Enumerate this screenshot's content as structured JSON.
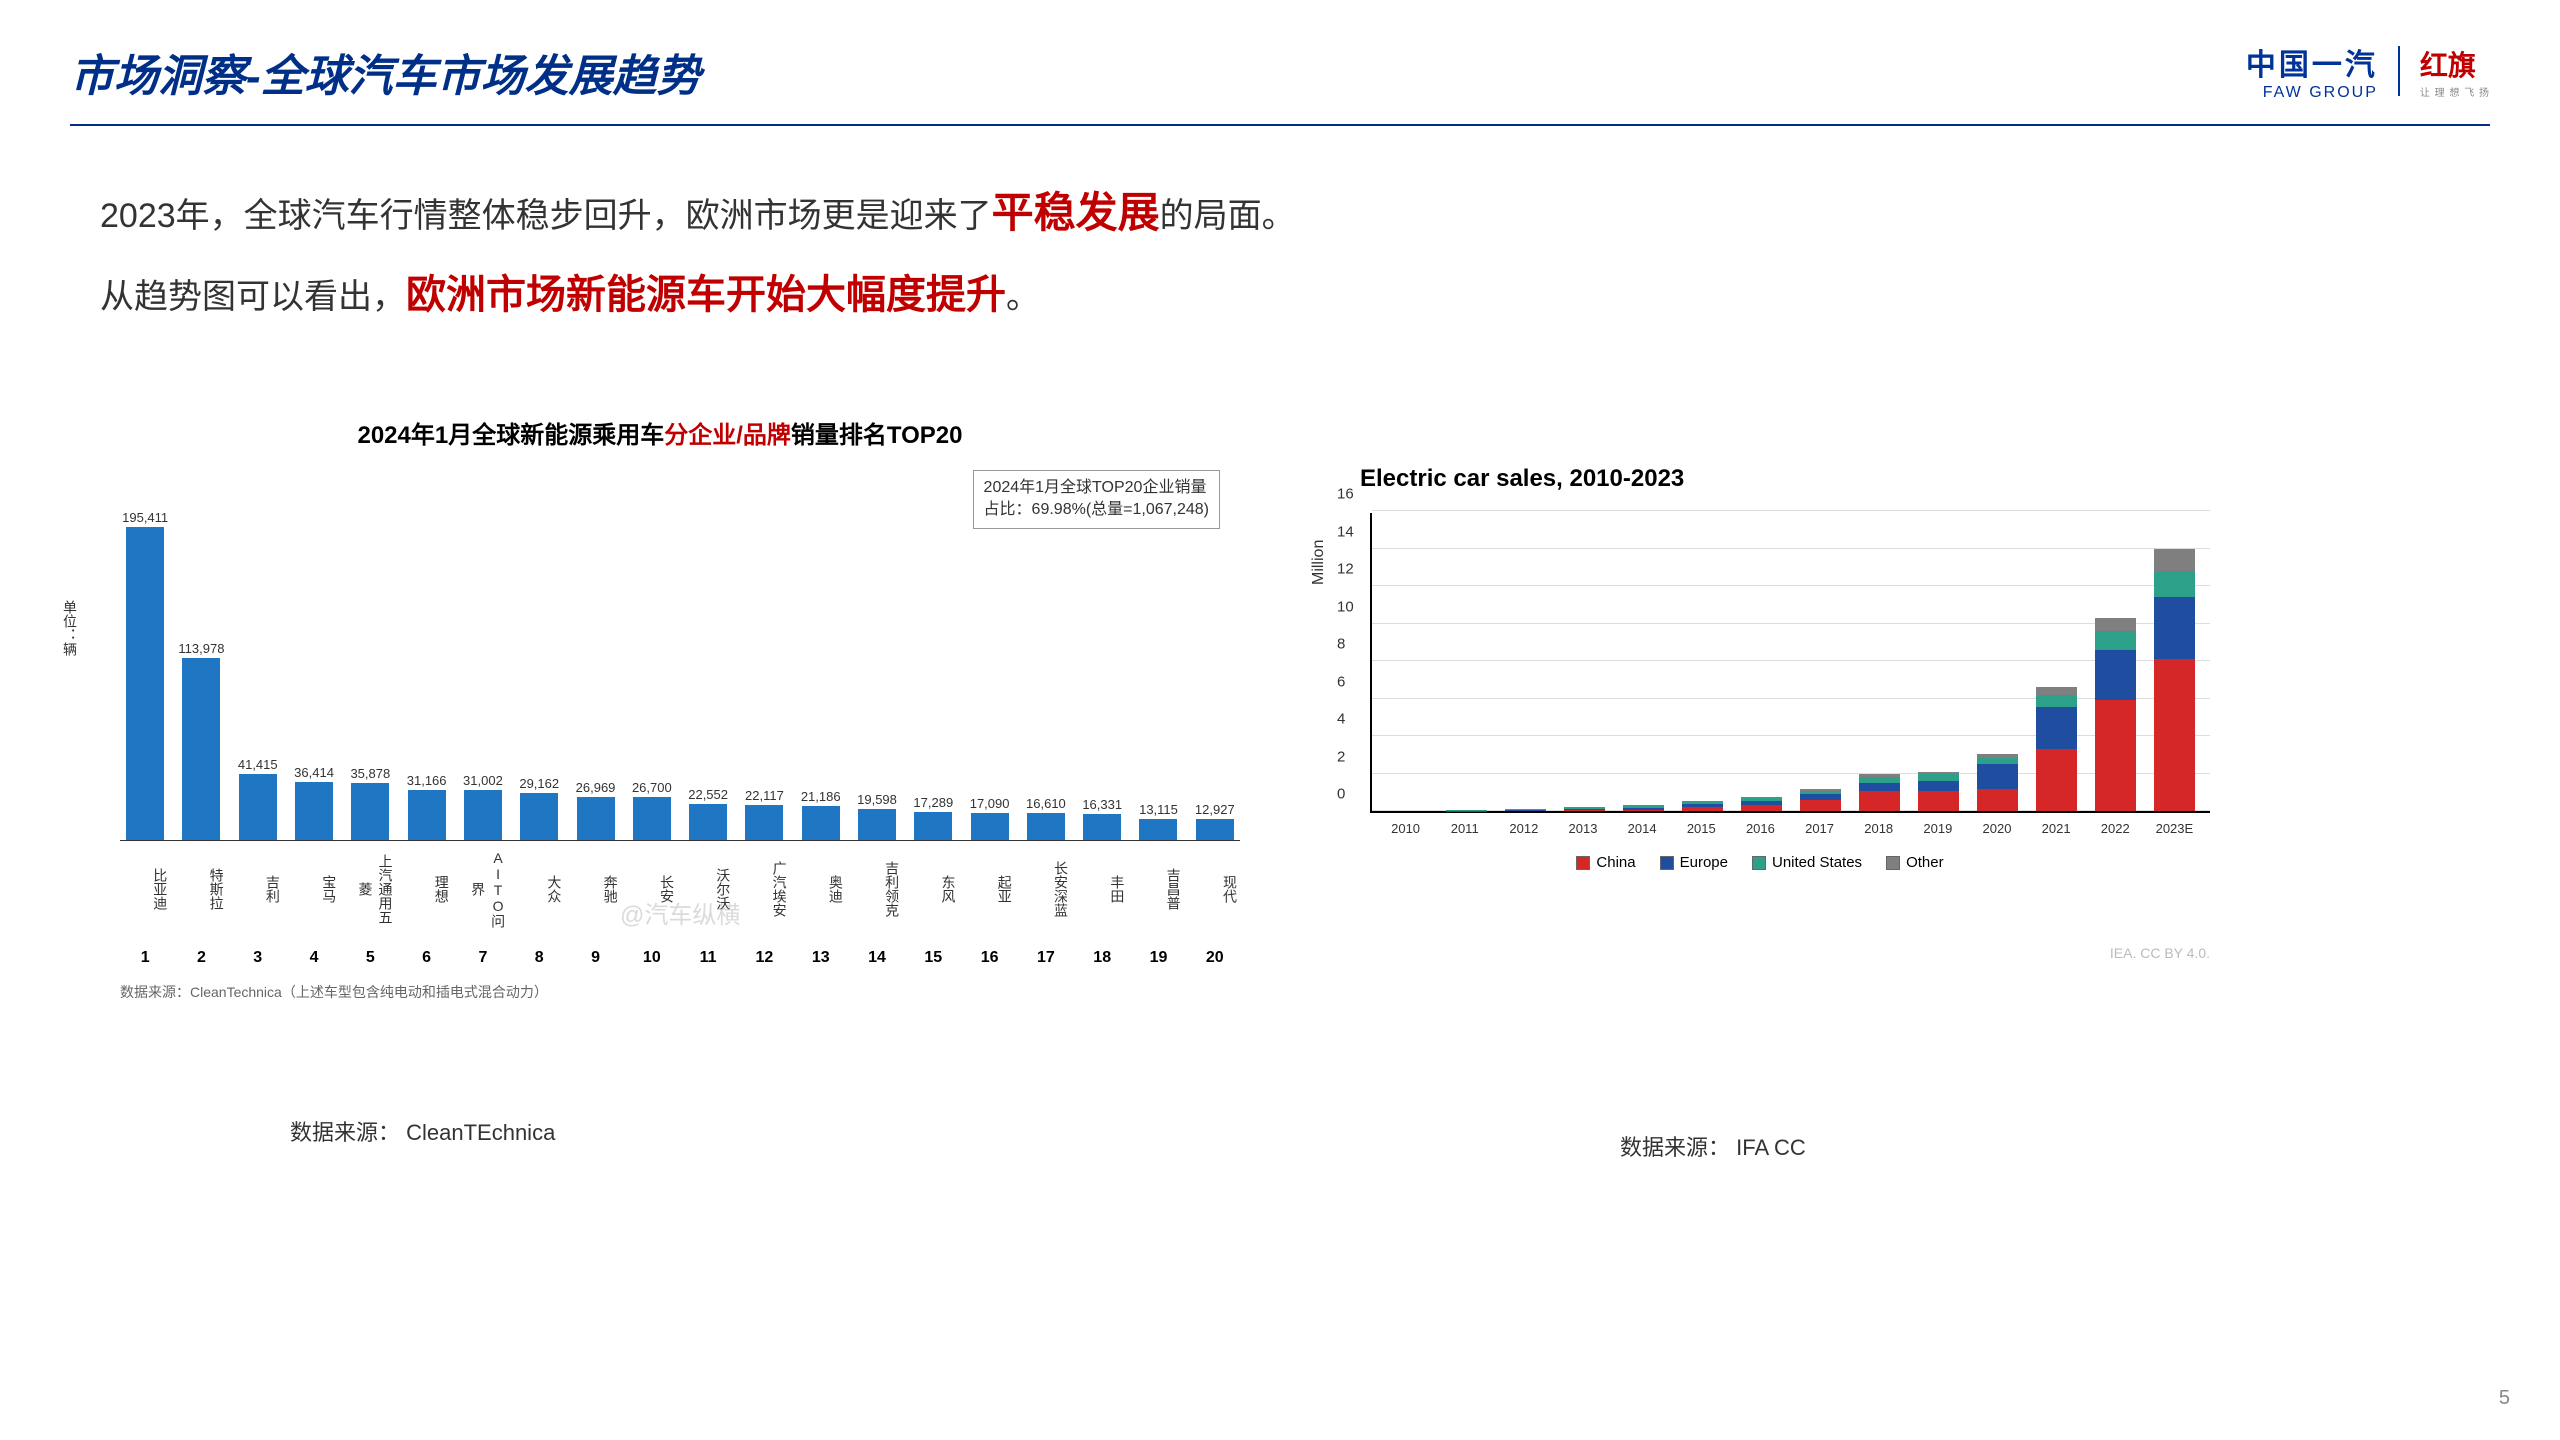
{
  "header": {
    "title": "市场洞察-全球汽车市场发展趋势",
    "logo_faw_cn": "中国一汽",
    "logo_faw_en": "FAW GROUP",
    "logo_hongqi": "红旗",
    "logo_hongqi_sub": "让 理 想 飞 扬"
  },
  "body": {
    "line1_a": "2023年，全球汽车行情整体稳步回升，欧洲市场更是迎来了",
    "line1_b": "平稳发展",
    "line1_c": "的局面。",
    "line2_a": "从趋势图可以看出，",
    "line2_b": "欧洲市场新能源车开始大幅度提升",
    "line2_c": "。"
  },
  "chart1": {
    "title_a": "2024年1月全球新能源乘用车",
    "title_b": "分企业/品牌",
    "title_c": "销量排名TOP20",
    "legend_l1": "2024年1月全球TOP20企业销量",
    "legend_l2": "占比：69.98%(总量=1,067,248)",
    "ylabel": "单位：辆",
    "bar_color": "#1f77c4",
    "max": 200000,
    "items": [
      {
        "rank": "1",
        "label": "比亚迪",
        "value": 195411,
        "disp": "195,411"
      },
      {
        "rank": "2",
        "label": "特斯拉",
        "value": 113978,
        "disp": "113,978"
      },
      {
        "rank": "3",
        "label": "吉利",
        "value": 41415,
        "disp": "41,415"
      },
      {
        "rank": "4",
        "label": "宝马",
        "value": 36414,
        "disp": "36,414"
      },
      {
        "rank": "5",
        "label": "上汽通用五菱",
        "value": 35878,
        "disp": "35,878"
      },
      {
        "rank": "6",
        "label": "理想",
        "value": 31166,
        "disp": "31,166"
      },
      {
        "rank": "7",
        "label": "AITO问界",
        "value": 31002,
        "disp": "31,002"
      },
      {
        "rank": "8",
        "label": "大众",
        "value": 29162,
        "disp": "29,162"
      },
      {
        "rank": "9",
        "label": "奔驰",
        "value": 26969,
        "disp": "26,969"
      },
      {
        "rank": "10",
        "label": "长安",
        "value": 26700,
        "disp": "26,700"
      },
      {
        "rank": "11",
        "label": "沃尔沃",
        "value": 22552,
        "disp": "22,552"
      },
      {
        "rank": "12",
        "label": "广汽埃安",
        "value": 22117,
        "disp": "22,117"
      },
      {
        "rank": "13",
        "label": "奥迪",
        "value": 21186,
        "disp": "21,186"
      },
      {
        "rank": "14",
        "label": "吉利领克",
        "value": 19598,
        "disp": "19,598"
      },
      {
        "rank": "15",
        "label": "东风",
        "value": 17289,
        "disp": "17,289"
      },
      {
        "rank": "16",
        "label": "起亚",
        "value": 17090,
        "disp": "17,090"
      },
      {
        "rank": "17",
        "label": "长安深蓝",
        "value": 16610,
        "disp": "16,610"
      },
      {
        "rank": "18",
        "label": "丰田",
        "value": 16331,
        "disp": "16,331"
      },
      {
        "rank": "19",
        "label": "吉昌普",
        "value": 13115,
        "disp": "13,115"
      },
      {
        "rank": "20",
        "label": "现代",
        "value": 12927,
        "disp": "12,927"
      }
    ],
    "source_inner": "数据来源：CleanTechnica（上述车型包含纯电动和插电式混合动力）",
    "watermark": "@汽车纵横"
  },
  "chart2": {
    "title": "Electric car sales, 2010-2023",
    "ylabel": "Million",
    "ymax": 16,
    "ytick_step": 2,
    "years": [
      "2010",
      "2011",
      "2012",
      "2013",
      "2014",
      "2015",
      "2016",
      "2017",
      "2018",
      "2019",
      "2020",
      "2021",
      "2022",
      "2023E"
    ],
    "series": {
      "china": {
        "label": "China",
        "color": "#d62728",
        "values": [
          0,
          0,
          0,
          0.03,
          0.08,
          0.21,
          0.34,
          0.58,
          1.08,
          1.06,
          1.17,
          3.3,
          5.9,
          8.1
        ]
      },
      "europe": {
        "label": "Europe",
        "color": "#1f4ea1",
        "values": [
          0,
          0.01,
          0.03,
          0.06,
          0.1,
          0.19,
          0.22,
          0.31,
          0.39,
          0.56,
          1.36,
          2.27,
          2.7,
          3.3
        ]
      },
      "us": {
        "label": "United States",
        "color": "#2ca089",
        "values": [
          0,
          0.02,
          0.05,
          0.1,
          0.12,
          0.12,
          0.16,
          0.2,
          0.36,
          0.33,
          0.3,
          0.63,
          0.99,
          1.4
        ]
      },
      "other": {
        "label": "Other",
        "color": "#7f7f7f",
        "values": [
          0,
          0,
          0.01,
          0.02,
          0.03,
          0.04,
          0.05,
          0.07,
          0.13,
          0.14,
          0.2,
          0.4,
          0.7,
          1.2
        ]
      }
    },
    "attrib": "IEA. CC BY 4.0."
  },
  "sources": {
    "left": "数据来源：  CleanTEchnica",
    "right": "数据来源：  IFA CC"
  },
  "page_number": "5"
}
